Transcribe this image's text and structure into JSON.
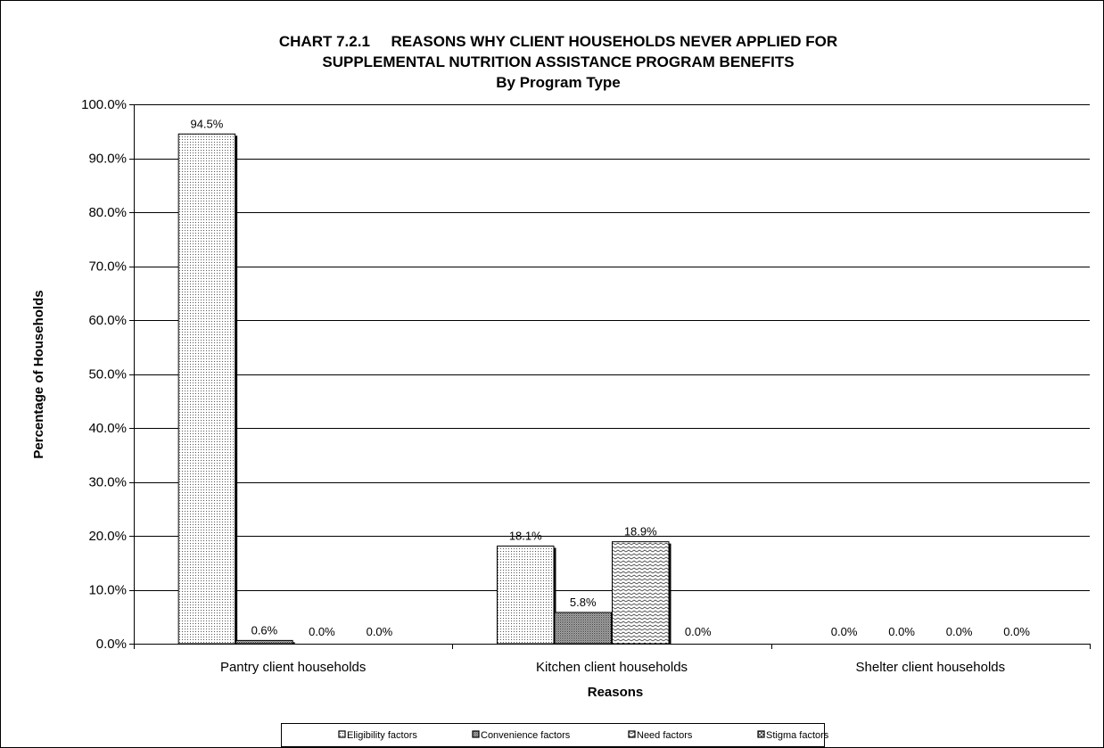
{
  "chart_data": {
    "type": "bar",
    "title_lines": [
      "CHART 7.2.1     REASONS WHY CLIENT HOUSEHOLDS NEVER APPLIED FOR",
      "SUPPLEMENTAL NUTRITION ASSISTANCE PROGRAM BENEFITS",
      "By Program Type"
    ],
    "xlabel": "Reasons",
    "ylabel": "Percentage of Households",
    "ylim": [
      0,
      100
    ],
    "yticks": [
      "0.0%",
      "10.0%",
      "20.0%",
      "30.0%",
      "40.0%",
      "50.0%",
      "60.0%",
      "70.0%",
      "80.0%",
      "90.0%",
      "100.0%"
    ],
    "ytick_values": [
      0,
      10,
      20,
      30,
      40,
      50,
      60,
      70,
      80,
      90,
      100
    ],
    "grid": true,
    "legend_position": "bottom",
    "categories": [
      "Pantry client households",
      "Kitchen client households",
      "Shelter client households"
    ],
    "series": [
      {
        "name": "Eligibility factors",
        "values": [
          94.5,
          18.1,
          0.0
        ],
        "labels": [
          "94.5%",
          "18.1%",
          "0.0%"
        ],
        "pattern": "dots"
      },
      {
        "name": "Convenience factors",
        "values": [
          0.6,
          5.8,
          0.0
        ],
        "labels": [
          "0.6%",
          "5.8%",
          "0.0%"
        ],
        "pattern": "dense"
      },
      {
        "name": "Need factors",
        "values": [
          0.0,
          18.9,
          0.0
        ],
        "labels": [
          "0.0%",
          "18.9%",
          "0.0%"
        ],
        "pattern": "zigzag"
      },
      {
        "name": "Stigma factors",
        "values": [
          0.0,
          0.0,
          0.0
        ],
        "labels": [
          "0.0%",
          "0.0%",
          "0.0%"
        ],
        "pattern": "cross"
      }
    ]
  }
}
